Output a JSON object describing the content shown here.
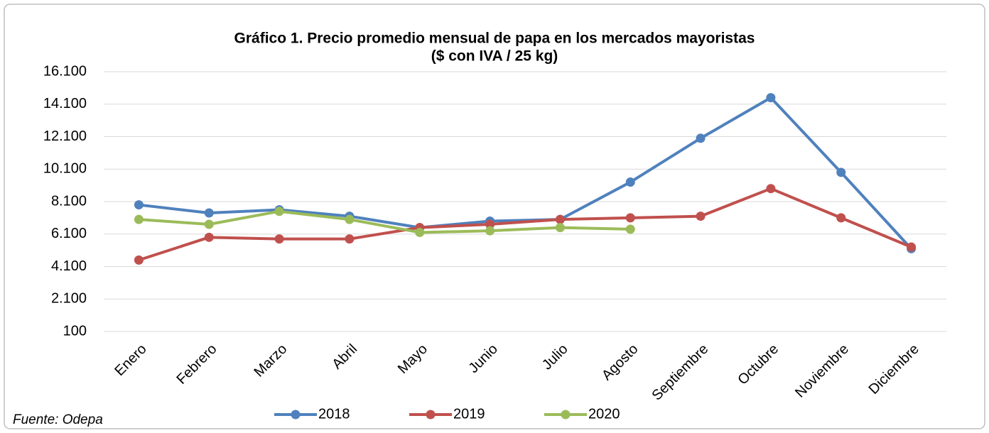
{
  "chart_data": {
    "type": "line",
    "title": "Gráfico 1. Precio promedio mensual de papa en los mercados mayoristas",
    "subtitle": "($ con IVA / 25 kg)",
    "source": "Fuente: Odepa",
    "categories": [
      "Enero",
      "Febrero",
      "Marzo",
      "Abril",
      "Mayo",
      "Junio",
      "Julio",
      "Agosto",
      "Septiembre",
      "Octubre",
      "Noviembre",
      "Diciembre"
    ],
    "series": [
      {
        "name": "2018",
        "color": "#4f81bd",
        "values": [
          7900,
          7400,
          7600,
          7200,
          6500,
          6900,
          7000,
          9300,
          12000,
          14500,
          9900,
          5200
        ]
      },
      {
        "name": "2019",
        "color": "#c0504d",
        "values": [
          4500,
          5900,
          5800,
          5800,
          6500,
          6700,
          7000,
          7100,
          7200,
          8900,
          7100,
          5300
        ]
      },
      {
        "name": "2020",
        "color": "#9bbb59",
        "values": [
          7000,
          6700,
          7500,
          7000,
          6200,
          6300,
          6500,
          6400,
          null,
          null,
          null,
          null
        ]
      }
    ],
    "ylim": [
      100,
      16100
    ],
    "yticks": [
      100,
      {
        "value": 2100,
        "label": "2.100"
      },
      {
        "value": 4100,
        "label": "4.100"
      },
      {
        "value": 6100,
        "label": "6.100"
      },
      {
        "value": 8100,
        "label": "8.100"
      },
      {
        "value": 10100,
        "label": "10.100"
      },
      {
        "value": 12100,
        "label": "12.100"
      },
      {
        "value": 14100,
        "label": "14.100"
      },
      {
        "value": 16100,
        "label": "16.100"
      }
    ],
    "grid": true,
    "legend": "bottom"
  }
}
